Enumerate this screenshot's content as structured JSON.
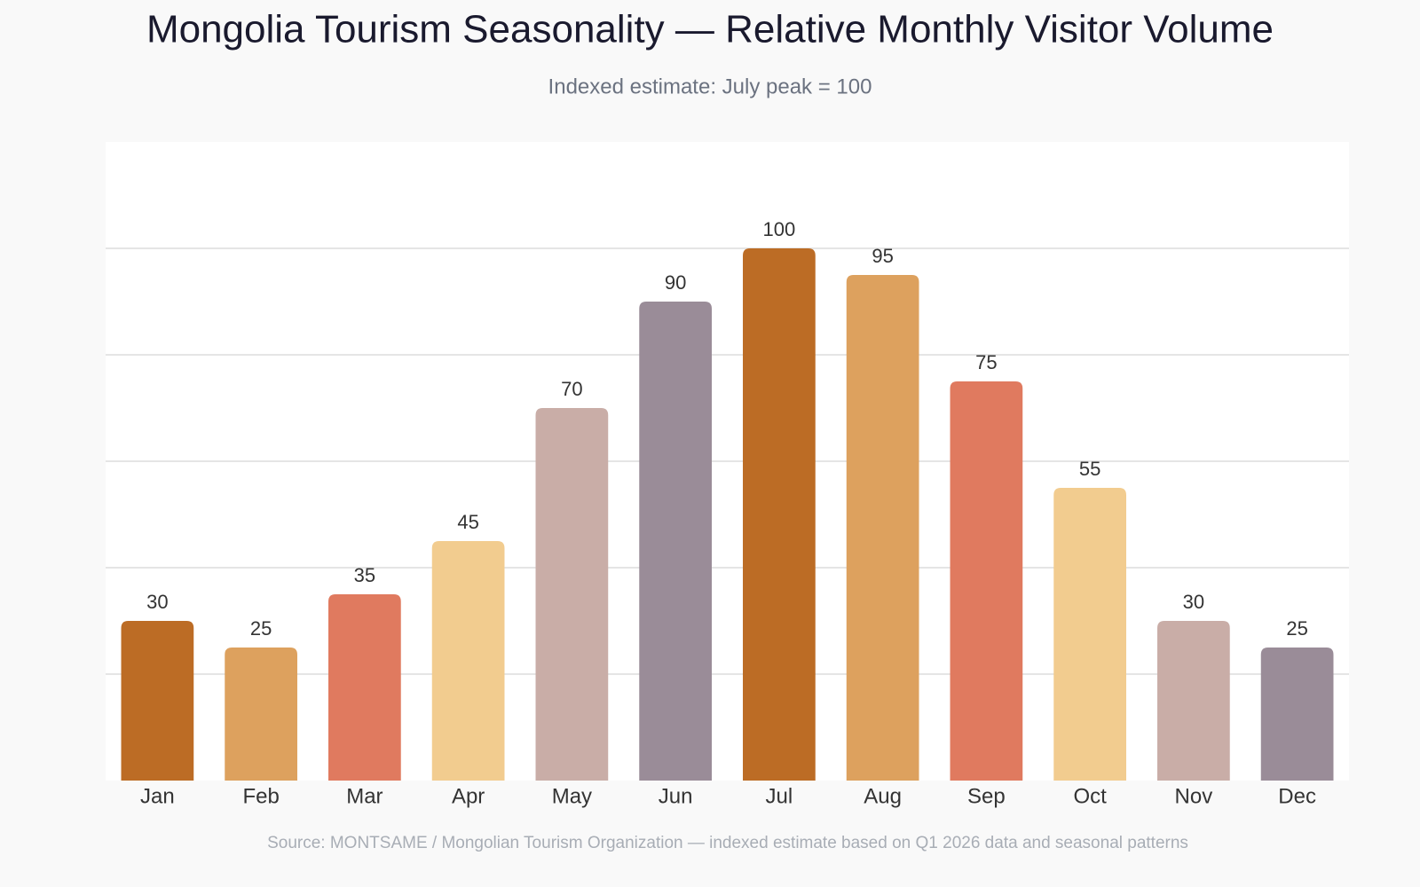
{
  "chart_data": {
    "type": "bar",
    "title": "Mongolia Tourism Seasonality — Relative Monthly Visitor Volume",
    "subtitle": "Indexed estimate: July peak = 100",
    "source": "Source: MONTSAME / Mongolian Tourism Organization — indexed estimate based on Q1 2026 data and seasonal patterns",
    "categories": [
      "Jan",
      "Feb",
      "Mar",
      "Apr",
      "May",
      "Jun",
      "Jul",
      "Aug",
      "Sep",
      "Oct",
      "Nov",
      "Dec"
    ],
    "values": [
      30,
      25,
      35,
      45,
      70,
      90,
      100,
      95,
      75,
      55,
      30,
      25
    ],
    "colors": [
      "#bc6c25",
      "#dda15e",
      "#e07a5f",
      "#f2cc8f",
      "#c9ada7",
      "#9a8c98",
      "#bc6c25",
      "#dda15e",
      "#e07a5f",
      "#f2cc8f",
      "#c9ada7",
      "#9a8c98"
    ],
    "ylim": [
      0,
      120
    ],
    "yticks": [
      20,
      40,
      60,
      80,
      100
    ],
    "grid": true
  }
}
